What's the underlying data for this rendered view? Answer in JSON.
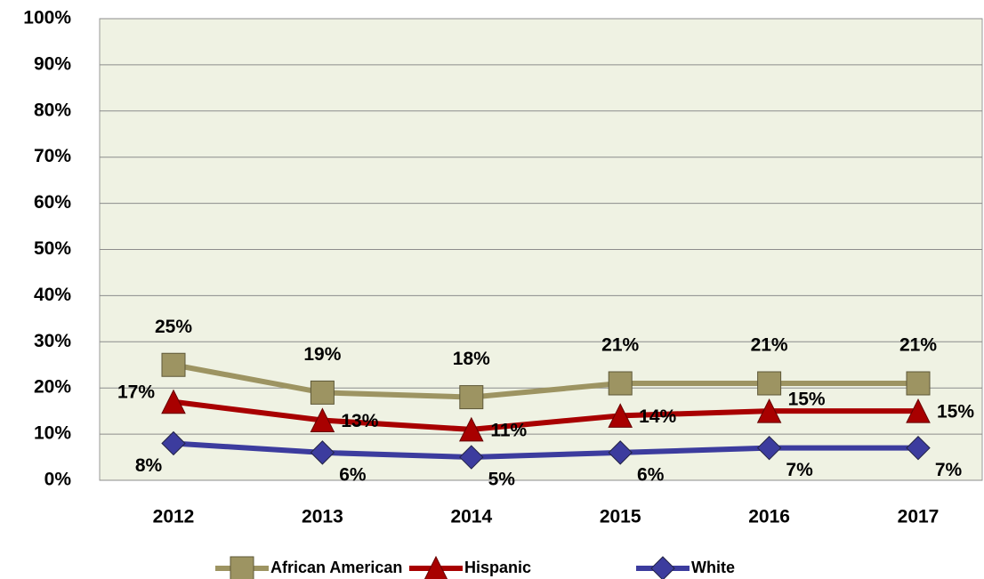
{
  "chart_data": {
    "type": "line",
    "categories": [
      "2012",
      "2013",
      "2014",
      "2015",
      "2016",
      "2017"
    ],
    "series": [
      {
        "name": "African American",
        "color": "#9d9462",
        "marker": "square",
        "values": [
          25,
          19,
          18,
          21,
          21,
          21
        ],
        "value_labels": [
          "25%",
          "19%",
          "18%",
          "21%",
          "21%",
          "21%"
        ]
      },
      {
        "name": "Hispanic",
        "color": "#a80000",
        "marker": "triangle",
        "values": [
          17,
          13,
          11,
          14,
          15,
          15
        ],
        "value_labels": [
          "17%",
          "13%",
          "11%",
          "14%",
          "15%",
          "15%"
        ]
      },
      {
        "name": "White",
        "color": "#3c3c9e",
        "marker": "diamond",
        "values": [
          8,
          6,
          5,
          6,
          7,
          7
        ],
        "value_labels": [
          "8%",
          "6%",
          "5%",
          "6%",
          "7%",
          "7%"
        ]
      }
    ],
    "ylim": [
      0,
      100
    ],
    "yticks": [
      {
        "value": 0,
        "label": "0%"
      },
      {
        "value": 10,
        "label": "10%"
      },
      {
        "value": 20,
        "label": "20%"
      },
      {
        "value": 30,
        "label": "30%"
      },
      {
        "value": 40,
        "label": "40%"
      },
      {
        "value": 50,
        "label": "50%"
      },
      {
        "value": 60,
        "label": "60%"
      },
      {
        "value": 70,
        "label": "70%"
      },
      {
        "value": 80,
        "label": "80%"
      },
      {
        "value": 90,
        "label": "90%"
      },
      {
        "value": 100,
        "label": "100%"
      }
    ],
    "grid": true,
    "legend": "bottom"
  }
}
